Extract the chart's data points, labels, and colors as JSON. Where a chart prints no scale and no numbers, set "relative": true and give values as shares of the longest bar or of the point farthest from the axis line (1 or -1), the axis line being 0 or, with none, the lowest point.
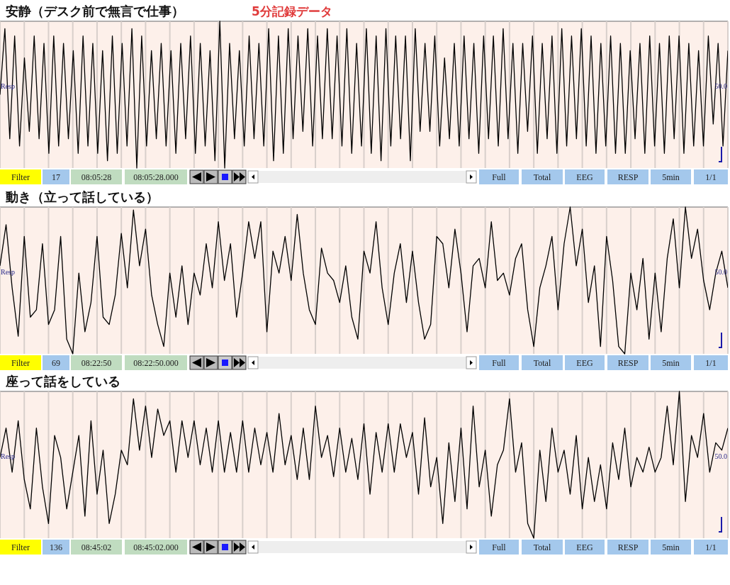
{
  "chart_data": [
    {
      "type": "line",
      "title": "安静（デスク前で無言で仕事）",
      "subtitle": "5分記録データ",
      "relative": true,
      "grid": "x",
      "categories": [
        null,
        null,
        null,
        null,
        null,
        null,
        null,
        null,
        null,
        null,
        null,
        null,
        null,
        null,
        null,
        null,
        null,
        null,
        null,
        null,
        null,
        null,
        null,
        null,
        null,
        null,
        null,
        null,
        null,
        null,
        null,
        null,
        null,
        null,
        null,
        null,
        null,
        null,
        null,
        null,
        null,
        null,
        null,
        null,
        null,
        null,
        null,
        null,
        null,
        null,
        null,
        null,
        null,
        null,
        null,
        null,
        null,
        null,
        null,
        null,
        null,
        null,
        null,
        null,
        null,
        null,
        null,
        null,
        null,
        null,
        null,
        null,
        null,
        null,
        null,
        null,
        null,
        null,
        null,
        null,
        null,
        null,
        null,
        null,
        null,
        null,
        null,
        null,
        null,
        null,
        null,
        null,
        null,
        null,
        null,
        null,
        null,
        null,
        null,
        null,
        null,
        null,
        null,
        null,
        null,
        null,
        null,
        null,
        null,
        null,
        null,
        null,
        null,
        null,
        null,
        null,
        null,
        null,
        null,
        null,
        null,
        null,
        null,
        null,
        null,
        null,
        null,
        null,
        null,
        null,
        null,
        null,
        null,
        null,
        null,
        null,
        null,
        null,
        null,
        null,
        null,
        null,
        null,
        null,
        null,
        null,
        null,
        null,
        null,
        null
      ],
      "series": [
        {
          "color": "#000000",
          "values": [
            0.5,
            0.95,
            0.2,
            0.9,
            0.15,
            0.75,
            0.25,
            0.9,
            0.2,
            0.85,
            0.1,
            0.9,
            0.15,
            0.85,
            0.2,
            0.8,
            0.1,
            0.9,
            0.15,
            0.85,
            0.1,
            0.8,
            0.05,
            0.9,
            0.1,
            0.85,
            0.15,
            0.95,
            0.0,
            0.9,
            0.15,
            0.8,
            0.2,
            0.85,
            0.15,
            0.8,
            0.1,
            0.85,
            0.2,
            0.9,
            0.1,
            0.85,
            0.15,
            0.8,
            0.05,
            1.0,
            0.0,
            0.85,
            0.2,
            0.8,
            0.15,
            0.9,
            0.2,
            0.85,
            0.15,
            0.95,
            0.05,
            0.9,
            0.1,
            0.95,
            0.2,
            0.9,
            0.25,
            0.95,
            0.15,
            0.9,
            0.2,
            0.95,
            0.2,
            0.9,
            0.15,
            0.95,
            0.1,
            0.85,
            0.15,
            0.95,
            0.1,
            0.9,
            0.05,
            0.95,
            0.15,
            0.9,
            0.2,
            0.9,
            0.05,
            0.95,
            0.25,
            0.85,
            0.25,
            0.9,
            0.15,
            0.75,
            0.2,
            0.85,
            0.15,
            0.9,
            0.2,
            0.85,
            0.1,
            0.9,
            0.2,
            0.9,
            0.15,
            0.95,
            0.2,
            0.85,
            0.1,
            0.85,
            0.25,
            0.9,
            0.1,
            0.85,
            0.2,
            0.9,
            0.1,
            0.95,
            0.15,
            0.9,
            0.2,
            0.95,
            0.15,
            0.9,
            0.1,
            0.85,
            0.15,
            0.9,
            0.1,
            0.85,
            0.1,
            0.8,
            0.2,
            0.85,
            0.1,
            0.9,
            0.15,
            0.85,
            0.1,
            0.9,
            0.2,
            0.9,
            0.1,
            0.85,
            0.15,
            0.8,
            0.15,
            0.9,
            0.3,
            0.85,
            0.15,
            0.8
          ]
        }
      ],
      "annotations": [
        "Resp",
        "50.0",
        "Filter",
        "17",
        "08:05:28",
        "08:05:28.000",
        "Full",
        "Total",
        "EEG",
        "RESP",
        "5min",
        "1/1"
      ]
    },
    {
      "type": "line",
      "title": "動き（立って話している）",
      "relative": true,
      "grid": "x",
      "categories": [
        null,
        null,
        null,
        null,
        null,
        null,
        null,
        null,
        null,
        null,
        null,
        null,
        null,
        null,
        null,
        null,
        null,
        null,
        null,
        null,
        null,
        null,
        null,
        null,
        null,
        null,
        null,
        null,
        null,
        null,
        null,
        null,
        null,
        null,
        null,
        null,
        null,
        null,
        null,
        null,
        null,
        null,
        null,
        null,
        null,
        null,
        null,
        null,
        null,
        null,
        null,
        null,
        null,
        null,
        null,
        null,
        null,
        null,
        null,
        null,
        null,
        null,
        null,
        null,
        null,
        null,
        null,
        null,
        null,
        null,
        null,
        null,
        null,
        null,
        null,
        null,
        null,
        null,
        null,
        null,
        null,
        null,
        null,
        null,
        null,
        null,
        null,
        null,
        null,
        null,
        null,
        null,
        null,
        null,
        null,
        null,
        null,
        null,
        null,
        null,
        null,
        null,
        null,
        null,
        null,
        null,
        null,
        null,
        null,
        null,
        null,
        null,
        null,
        null,
        null,
        null,
        null,
        null,
        null,
        null,
        null
      ],
      "series": [
        {
          "color": "#000000",
          "values": [
            0.6,
            0.88,
            0.45,
            0.12,
            0.8,
            0.25,
            0.3,
            0.75,
            0.2,
            0.3,
            0.8,
            0.1,
            0.0,
            0.55,
            0.15,
            0.35,
            0.8,
            0.25,
            0.2,
            0.4,
            0.82,
            0.45,
            0.98,
            0.6,
            0.85,
            0.4,
            0.2,
            0.05,
            0.55,
            0.25,
            0.6,
            0.2,
            0.55,
            0.4,
            0.75,
            0.45,
            0.9,
            0.5,
            0.75,
            0.25,
            0.55,
            0.9,
            0.65,
            0.9,
            0.15,
            0.7,
            0.55,
            0.8,
            0.5,
            0.95,
            0.55,
            0.3,
            0.2,
            0.72,
            0.55,
            0.5,
            0.35,
            0.6,
            0.25,
            0.1,
            0.7,
            0.55,
            0.9,
            0.45,
            0.2,
            0.55,
            0.75,
            0.35,
            0.7,
            0.35,
            0.1,
            0.2,
            0.8,
            0.75,
            0.45,
            0.85,
            0.55,
            0.15,
            0.6,
            0.65,
            0.45,
            0.9,
            0.5,
            0.55,
            0.4,
            0.65,
            0.75,
            0.3,
            0.05,
            0.45,
            0.6,
            0.8,
            0.3,
            0.75,
            1.0,
            0.6,
            0.85,
            0.35,
            0.6,
            0.05,
            0.8,
            0.5,
            0.05,
            0.0,
            0.55,
            0.3,
            0.65,
            0.1,
            0.55,
            0.15,
            0.65,
            0.92,
            0.45,
            1.0,
            0.65,
            0.85,
            0.5,
            0.3,
            0.55,
            0.7,
            0.45
          ]
        }
      ],
      "annotations": [
        "Resp",
        "50.0",
        "Filter",
        "69",
        "08:22:50",
        "08:22:50.000",
        "Full",
        "Total",
        "EEG",
        "RESP",
        "5min",
        "1/1"
      ]
    },
    {
      "type": "line",
      "title": "座って話をしている",
      "relative": true,
      "grid": "x",
      "categories": [
        null,
        null,
        null,
        null,
        null,
        null,
        null,
        null,
        null,
        null,
        null,
        null,
        null,
        null,
        null,
        null,
        null,
        null,
        null,
        null,
        null,
        null,
        null,
        null,
        null,
        null,
        null,
        null,
        null,
        null,
        null,
        null,
        null,
        null,
        null,
        null,
        null,
        null,
        null,
        null,
        null,
        null,
        null,
        null,
        null,
        null,
        null,
        null,
        null,
        null,
        null,
        null,
        null,
        null,
        null,
        null,
        null,
        null,
        null,
        null,
        null,
        null,
        null,
        null,
        null,
        null,
        null,
        null,
        null,
        null,
        null,
        null,
        null,
        null,
        null,
        null,
        null,
        null,
        null,
        null,
        null,
        null,
        null,
        null,
        null,
        null,
        null,
        null,
        null,
        null,
        null,
        null,
        null,
        null,
        null,
        null,
        null,
        null,
        null,
        null,
        null,
        null,
        null,
        null,
        null,
        null,
        null,
        null,
        null,
        null,
        null,
        null,
        null,
        null,
        null,
        null,
        null,
        null,
        null,
        null,
        null
      ],
      "series": [
        {
          "color": "#000000",
          "values": [
            0.55,
            0.75,
            0.45,
            0.8,
            0.4,
            0.2,
            0.75,
            0.35,
            0.1,
            0.7,
            0.55,
            0.2,
            0.45,
            0.7,
            0.15,
            0.8,
            0.3,
            0.6,
            0.1,
            0.3,
            0.6,
            0.5,
            0.95,
            0.6,
            0.9,
            0.55,
            0.88,
            0.7,
            0.8,
            0.45,
            0.8,
            0.55,
            0.8,
            0.5,
            0.75,
            0.45,
            0.8,
            0.45,
            0.72,
            0.45,
            0.8,
            0.45,
            0.75,
            0.5,
            0.72,
            0.45,
            0.85,
            0.5,
            0.7,
            0.4,
            0.75,
            0.4,
            0.9,
            0.55,
            0.7,
            0.42,
            0.75,
            0.45,
            0.68,
            0.4,
            0.78,
            0.3,
            0.72,
            0.45,
            0.78,
            0.45,
            0.78,
            0.55,
            0.72,
            0.3,
            0.82,
            0.35,
            0.55,
            0.1,
            0.65,
            0.25,
            0.75,
            0.2,
            0.9,
            0.35,
            0.6,
            0.15,
            0.5,
            0.6,
            0.95,
            0.45,
            0.65,
            0.1,
            0.0,
            0.6,
            0.25,
            0.75,
            0.45,
            0.6,
            0.3,
            0.7,
            0.2,
            0.55,
            0.25,
            0.5,
            0.2,
            0.65,
            0.4,
            0.75,
            0.35,
            0.55,
            0.45,
            0.62,
            0.45,
            0.55,
            0.9,
            0.5,
            1.0,
            0.25,
            0.7,
            0.55,
            0.85,
            0.45,
            0.65,
            0.6,
            0.75
          ]
        }
      ],
      "annotations": [
        "Resp",
        "50.0",
        "Filter",
        "136",
        "08:45:02",
        "08:45:02.000",
        "Full",
        "Total",
        "EEG",
        "RESP",
        "5min",
        "1/1"
      ]
    }
  ]
}
